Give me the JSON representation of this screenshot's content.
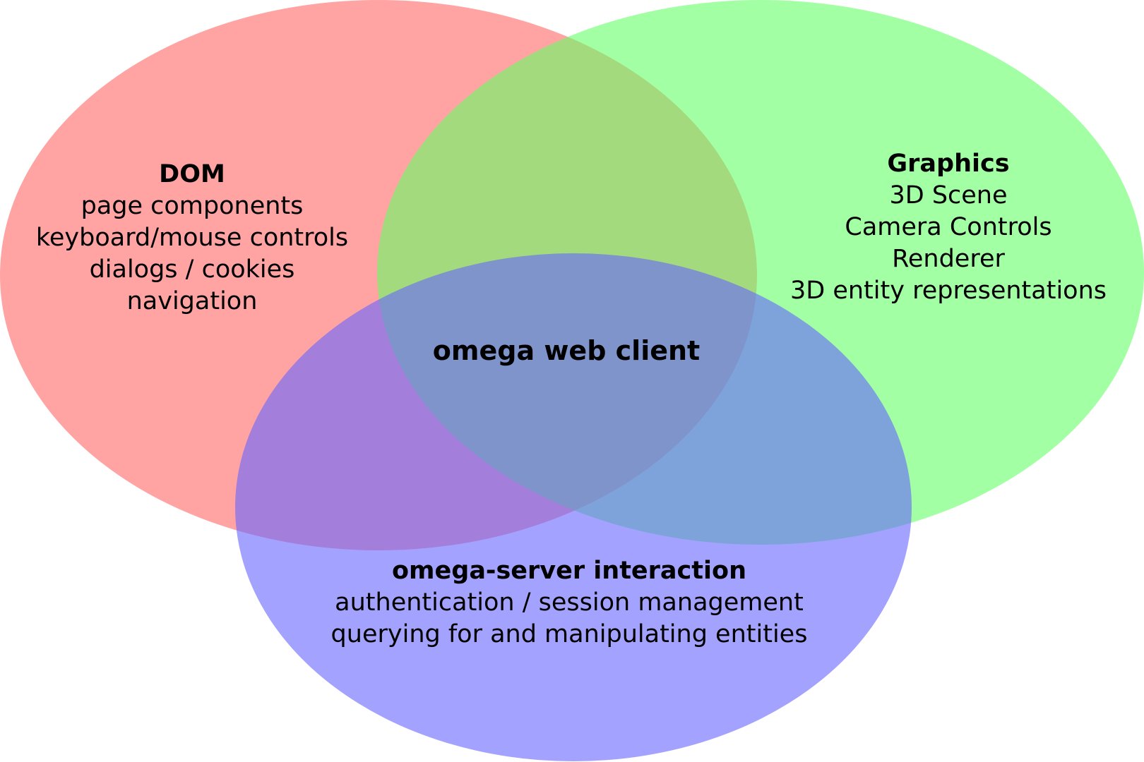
{
  "diagram": {
    "type": "venn",
    "center_label": "omega web client",
    "sets": [
      {
        "id": "dom",
        "title": "DOM",
        "color": "#ff6666",
        "items": [
          "page components",
          "keyboard/mouse controls",
          "dialogs / cookies",
          "navigation"
        ]
      },
      {
        "id": "graphics",
        "title": "Graphics",
        "color": "#66ff66",
        "items": [
          "3D Scene",
          "Camera Controls",
          "Renderer",
          "3D entity representations"
        ]
      },
      {
        "id": "server",
        "title": "omega-server interaction",
        "color": "#6666ff",
        "items": [
          "authentication / session management",
          "querying for and manipulating entities"
        ]
      }
    ]
  }
}
